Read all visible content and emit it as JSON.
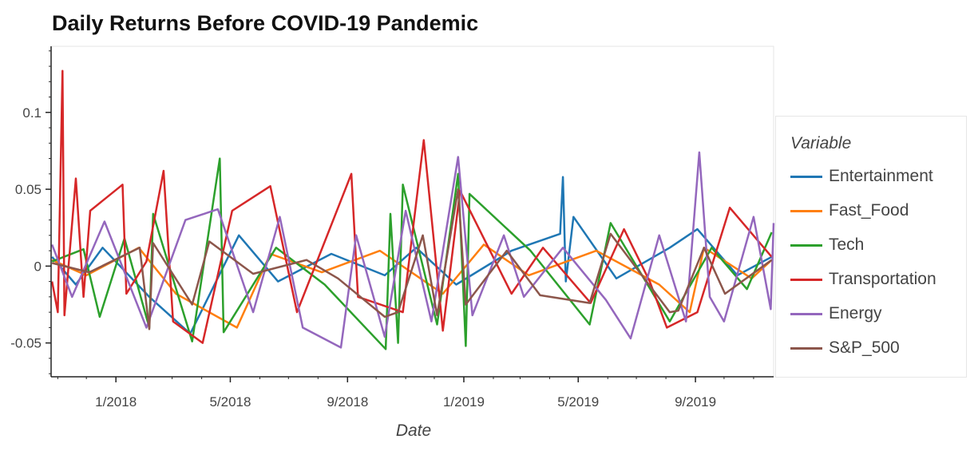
{
  "chart_data": {
    "type": "line",
    "title": "Daily Returns Before COVID-19 Pandemic",
    "xlabel": "Date",
    "ylabel": "",
    "x_range": [
      "2017-10-25",
      "2019-11-22"
    ],
    "ylim": [
      -0.072,
      0.143
    ],
    "xticks": [
      {
        "date": "2018-01-01",
        "label": "1/2018"
      },
      {
        "date": "2018-05-01",
        "label": "5/2018"
      },
      {
        "date": "2018-09-01",
        "label": "9/2018"
      },
      {
        "date": "2019-01-01",
        "label": "1/2019"
      },
      {
        "date": "2019-05-01",
        "label": "5/2019"
      },
      {
        "date": "2019-09-01",
        "label": "9/2019"
      }
    ],
    "yticks": [
      {
        "value": 0.1,
        "label": "0.1"
      },
      {
        "value": 0.05,
        "label": "0.05"
      },
      {
        "value": 0,
        "label": "0"
      },
      {
        "value": -0.05,
        "label": "-0.05"
      }
    ],
    "legend": {
      "title": "Variable",
      "position": "right"
    },
    "series": [
      {
        "name": "Entertainment",
        "color": "#1f77b4",
        "points": [
          [
            "2017-10-26",
            0.006
          ],
          [
            "2017-11-20",
            -0.012
          ],
          [
            "2017-12-18",
            0.012
          ],
          [
            "2018-02-05",
            -0.02
          ],
          [
            "2018-03-20",
            -0.044
          ],
          [
            "2018-05-10",
            0.02
          ],
          [
            "2018-06-20",
            -0.01
          ],
          [
            "2018-08-15",
            0.008
          ],
          [
            "2018-10-10",
            -0.006
          ],
          [
            "2018-11-12",
            0.012
          ],
          [
            "2018-12-24",
            -0.012
          ],
          [
            "2019-02-20",
            0.01
          ],
          [
            "2019-04-12",
            0.021
          ],
          [
            "2019-04-15",
            0.058
          ],
          [
            "2019-04-18",
            -0.01
          ],
          [
            "2019-04-26",
            0.032
          ],
          [
            "2019-06-10",
            -0.008
          ],
          [
            "2019-08-05",
            0.012
          ],
          [
            "2019-09-03",
            0.024
          ],
          [
            "2019-10-15",
            -0.006
          ],
          [
            "2019-11-20",
            0.006
          ]
        ]
      },
      {
        "name": "Fast_Food",
        "color": "#ff7f0e",
        "points": [
          [
            "2017-10-26",
            0.004
          ],
          [
            "2017-12-01",
            -0.006
          ],
          [
            "2018-01-25",
            0.012
          ],
          [
            "2018-03-05",
            -0.018
          ],
          [
            "2018-05-08",
            -0.04
          ],
          [
            "2018-06-12",
            0.008
          ],
          [
            "2018-08-05",
            -0.004
          ],
          [
            "2018-10-05",
            0.01
          ],
          [
            "2018-12-10",
            -0.018
          ],
          [
            "2019-01-22",
            0.014
          ],
          [
            "2019-03-10",
            -0.006
          ],
          [
            "2019-05-20",
            0.01
          ],
          [
            "2019-07-25",
            -0.012
          ],
          [
            "2019-08-26",
            -0.03
          ],
          [
            "2019-09-10",
            0.012
          ],
          [
            "2019-10-30",
            -0.008
          ],
          [
            "2019-11-20",
            0.004
          ]
        ]
      },
      {
        "name": "Tech",
        "color": "#2ca02c",
        "points": [
          [
            "2017-10-26",
            0.003
          ],
          [
            "2017-11-28",
            0.011
          ],
          [
            "2017-12-15",
            -0.033
          ],
          [
            "2018-01-10",
            0.018
          ],
          [
            "2018-02-05",
            -0.04
          ],
          [
            "2018-02-09",
            0.034
          ],
          [
            "2018-03-22",
            -0.049
          ],
          [
            "2018-04-20",
            0.07
          ],
          [
            "2018-04-24",
            -0.043
          ],
          [
            "2018-06-18",
            0.012
          ],
          [
            "2018-08-08",
            -0.012
          ],
          [
            "2018-10-11",
            -0.054
          ],
          [
            "2018-10-16",
            0.034
          ],
          [
            "2018-10-24",
            -0.05
          ],
          [
            "2018-10-29",
            0.053
          ],
          [
            "2018-12-04",
            -0.038
          ],
          [
            "2018-12-26",
            0.06
          ],
          [
            "2019-01-03",
            -0.052
          ],
          [
            "2019-01-07",
            0.047
          ],
          [
            "2019-03-12",
            0.01
          ],
          [
            "2019-05-13",
            -0.038
          ],
          [
            "2019-06-04",
            0.028
          ],
          [
            "2019-08-05",
            -0.036
          ],
          [
            "2019-09-18",
            0.012
          ],
          [
            "2019-10-25",
            -0.015
          ],
          [
            "2019-11-20",
            0.022
          ]
        ]
      },
      {
        "name": "Transportation",
        "color": "#d62728",
        "points": [
          [
            "2017-10-26",
            -0.01
          ],
          [
            "2017-11-01",
            -0.03
          ],
          [
            "2017-11-06",
            0.127
          ],
          [
            "2017-11-08",
            -0.032
          ],
          [
            "2017-11-20",
            0.057
          ],
          [
            "2017-11-28",
            -0.02
          ],
          [
            "2017-12-05",
            0.036
          ],
          [
            "2018-01-08",
            0.053
          ],
          [
            "2018-01-12",
            -0.018
          ],
          [
            "2018-02-02",
            0.003
          ],
          [
            "2018-02-20",
            0.062
          ],
          [
            "2018-03-02",
            -0.036
          ],
          [
            "2018-04-02",
            -0.05
          ],
          [
            "2018-05-03",
            0.036
          ],
          [
            "2018-06-12",
            0.052
          ],
          [
            "2018-07-10",
            -0.03
          ],
          [
            "2018-09-05",
            0.06
          ],
          [
            "2018-09-12",
            -0.02
          ],
          [
            "2018-10-29",
            -0.03
          ],
          [
            "2018-11-20",
            0.082
          ],
          [
            "2018-12-10",
            -0.042
          ],
          [
            "2018-12-28",
            0.049
          ],
          [
            "2019-02-20",
            -0.018
          ],
          [
            "2019-03-25",
            0.012
          ],
          [
            "2019-05-14",
            -0.024
          ],
          [
            "2019-06-18",
            0.024
          ],
          [
            "2019-07-15",
            -0.01
          ],
          [
            "2019-08-02",
            -0.04
          ],
          [
            "2019-09-03",
            -0.03
          ],
          [
            "2019-10-07",
            0.038
          ],
          [
            "2019-11-20",
            0.006
          ]
        ]
      },
      {
        "name": "Energy",
        "color": "#9467bd",
        "points": [
          [
            "2017-10-26",
            0.014
          ],
          [
            "2017-11-16",
            -0.02
          ],
          [
            "2017-12-20",
            0.029
          ],
          [
            "2018-02-02",
            -0.04
          ],
          [
            "2018-03-15",
            0.03
          ],
          [
            "2018-04-18",
            0.037
          ],
          [
            "2018-05-25",
            -0.03
          ],
          [
            "2018-06-22",
            0.032
          ],
          [
            "2018-07-16",
            -0.04
          ],
          [
            "2018-08-25",
            -0.053
          ],
          [
            "2018-09-10",
            0.02
          ],
          [
            "2018-10-10",
            -0.046
          ],
          [
            "2018-11-01",
            0.036
          ],
          [
            "2018-11-28",
            -0.036
          ],
          [
            "2018-12-26",
            0.071
          ],
          [
            "2019-01-10",
            -0.032
          ],
          [
            "2019-02-12",
            0.02
          ],
          [
            "2019-03-05",
            -0.02
          ],
          [
            "2019-04-15",
            0.012
          ],
          [
            "2019-05-30",
            -0.022
          ],
          [
            "2019-06-25",
            -0.047
          ],
          [
            "2019-07-25",
            0.02
          ],
          [
            "2019-08-22",
            -0.036
          ],
          [
            "2019-09-05",
            0.074
          ],
          [
            "2019-09-16",
            -0.02
          ],
          [
            "2019-10-01",
            -0.036
          ],
          [
            "2019-11-01",
            0.032
          ],
          [
            "2019-11-19",
            -0.028
          ],
          [
            "2019-11-22",
            0.028
          ]
        ]
      },
      {
        "name": "S&P_500",
        "color": "#8c564b",
        "points": [
          [
            "2017-10-26",
            0.002
          ],
          [
            "2017-12-04",
            -0.004
          ],
          [
            "2018-01-26",
            0.012
          ],
          [
            "2018-02-05",
            -0.041
          ],
          [
            "2018-02-09",
            0.015
          ],
          [
            "2018-03-22",
            -0.025
          ],
          [
            "2018-04-09",
            0.016
          ],
          [
            "2018-05-25",
            -0.005
          ],
          [
            "2018-07-20",
            0.004
          ],
          [
            "2018-08-22",
            -0.008
          ],
          [
            "2018-10-10",
            -0.033
          ],
          [
            "2018-10-24",
            -0.03
          ],
          [
            "2018-11-19",
            0.02
          ],
          [
            "2018-12-04",
            -0.032
          ],
          [
            "2018-12-26",
            0.05
          ],
          [
            "2019-01-03",
            -0.025
          ],
          [
            "2019-02-15",
            0.01
          ],
          [
            "2019-03-22",
            -0.019
          ],
          [
            "2019-05-13",
            -0.024
          ],
          [
            "2019-06-04",
            0.021
          ],
          [
            "2019-08-05",
            -0.03
          ],
          [
            "2019-08-14",
            -0.029
          ],
          [
            "2019-09-10",
            0.012
          ],
          [
            "2019-10-02",
            -0.018
          ],
          [
            "2019-11-20",
            0.004
          ]
        ]
      }
    ]
  }
}
